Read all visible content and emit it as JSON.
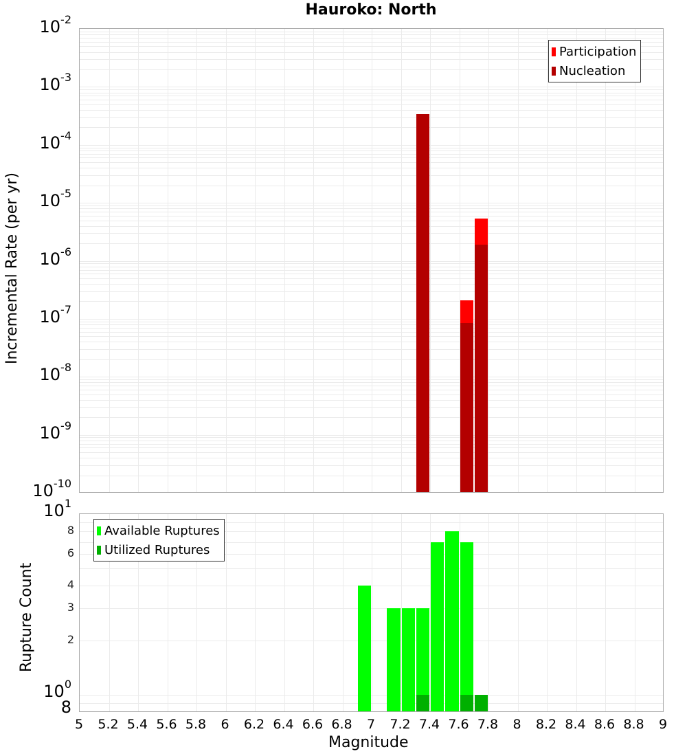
{
  "chart_data": [
    {
      "type": "bar",
      "title": "Hauroko: North",
      "xlabel": "Magnitude",
      "ylabel": "Incremental Rate (per yr)",
      "yscale": "log",
      "ylim": [
        1e-10,
        0.01
      ],
      "xlim": [
        5,
        9
      ],
      "grid": true,
      "legend_position": "top-right",
      "bar_width": 0.1,
      "x": [
        7.35,
        7.65,
        7.75
      ],
      "series": [
        {
          "name": "Participation",
          "color": "#ff0000",
          "values": [
            0.00034,
            2.1e-07,
            5.3e-06
          ]
        },
        {
          "name": "Nucleation",
          "color": "#b30000",
          "values": [
            0.00034,
            8.5e-08,
            1.9e-06
          ]
        }
      ],
      "yticks": [
        "10^-2",
        "10^-3",
        "10^-4",
        "10^-5",
        "10^-6",
        "10^-7",
        "10^-8",
        "10^-9",
        "10^-10"
      ]
    },
    {
      "type": "bar",
      "title": "",
      "xlabel": "Magnitude",
      "ylabel": "Rupture Count",
      "yscale": "log",
      "ylim": [
        0.8,
        10
      ],
      "xlim": [
        5,
        9
      ],
      "grid": true,
      "legend_position": "top-left",
      "bar_width": 0.1,
      "series": [
        {
          "name": "Available Ruptures",
          "color": "#00ff00",
          "x": [
            6.95,
            7.15,
            7.25,
            7.35,
            7.45,
            7.55,
            7.65
          ],
          "values": [
            4,
            3,
            3,
            3,
            7,
            8,
            7
          ]
        },
        {
          "name": "Utilized Ruptures",
          "color": "#00b000",
          "x": [
            7.35,
            7.65,
            7.75
          ],
          "values": [
            1,
            1,
            1
          ]
        }
      ],
      "yticks": [
        "8",
        "10^0",
        "2",
        "3",
        "4",
        "6",
        "8",
        "10^1"
      ]
    }
  ],
  "title": "Hauroko: North",
  "top": {
    "ylabel": "Incremental Rate (per yr)",
    "legend": [
      {
        "label": "Participation",
        "color": "#ff0000"
      },
      {
        "label": "Nucleation",
        "color": "#b30000"
      }
    ],
    "yticks": [
      {
        "base": "10",
        "exp": "-2"
      },
      {
        "base": "10",
        "exp": "-3"
      },
      {
        "base": "10",
        "exp": "-4"
      },
      {
        "base": "10",
        "exp": "-5"
      },
      {
        "base": "10",
        "exp": "-6"
      },
      {
        "base": "10",
        "exp": "-7"
      },
      {
        "base": "10",
        "exp": "-8"
      },
      {
        "base": "10",
        "exp": "-9"
      },
      {
        "base": "10",
        "exp": "-10"
      }
    ]
  },
  "bottom": {
    "ylabel": "Rupture Count",
    "legend": [
      {
        "label": "Available Ruptures",
        "color": "#00ff00"
      },
      {
        "label": "Utilized Ruptures",
        "color": "#00b000"
      }
    ],
    "major_ticks": [
      {
        "base": "10",
        "exp": "1"
      },
      {
        "base": "10",
        "exp": "0"
      }
    ],
    "minor_ticks": [
      "8",
      "6",
      "4",
      "3",
      "2",
      "8"
    ]
  },
  "xaxis": {
    "label": "Magnitude",
    "ticks": [
      "5",
      "5.2",
      "5.4",
      "5.6",
      "5.8",
      "6",
      "6.2",
      "6.4",
      "6.6",
      "6.8",
      "7",
      "7.2",
      "7.4",
      "7.6",
      "7.8",
      "8",
      "8.2",
      "8.4",
      "8.6",
      "8.8",
      "9"
    ]
  }
}
